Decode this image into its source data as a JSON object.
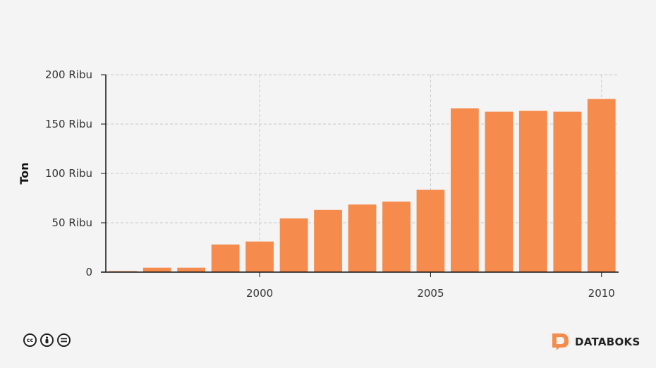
{
  "chart_data": {
    "type": "bar",
    "x": [
      1996,
      1997,
      1998,
      1999,
      2000,
      2001,
      2002,
      2003,
      2004,
      2005,
      2006,
      2007,
      2008,
      2009,
      2010
    ],
    "values": [
      1000,
      4500,
      4500,
      28000,
      31000,
      54500,
      63000,
      68500,
      71500,
      83500,
      166000,
      162500,
      163500,
      162500,
      175500
    ],
    "ylabel": "Ton",
    "ylim": [
      0,
      200000
    ],
    "xlim": [
      1995.5,
      2010.5
    ],
    "yticks": [
      {
        "value": 0,
        "label": "0"
      },
      {
        "value": 50000,
        "label": "50 Ribu"
      },
      {
        "value": 100000,
        "label": "100 Ribu"
      },
      {
        "value": 150000,
        "label": "150 Ribu"
      },
      {
        "value": 200000,
        "label": "200 Ribu"
      }
    ],
    "xticks": [
      {
        "value": 2000,
        "label": "2000"
      },
      {
        "value": 2005,
        "label": "2005"
      },
      {
        "value": 2010,
        "label": "2010"
      }
    ],
    "grid": true,
    "bar_color": "#f58b4c"
  },
  "footer": {
    "license_icons": [
      "cc-icon",
      "by-icon",
      "nd-icon"
    ],
    "brand_name": "DATABOKS",
    "brand_color": "#f58b4c"
  }
}
